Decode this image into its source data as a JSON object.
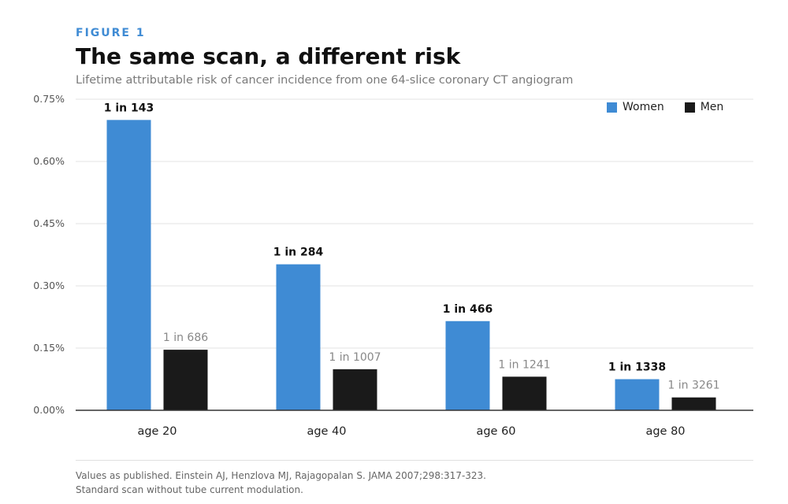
{
  "header": {
    "kicker": "FIGURE 1",
    "title": "The same scan, a different risk",
    "subtitle": "Lifetime attributable risk of cancer incidence from one 64-slice coronary CT angiogram"
  },
  "legend": [
    {
      "label": "Women",
      "color": "#3f8bd4"
    },
    {
      "label": "Men",
      "color": "#1a1a1a"
    }
  ],
  "footer": {
    "line1": "Values as published. Einstein AJ, Henzlova MJ, Rajagopalan S. JAMA 2007;298:317-323.",
    "line2": "Standard scan without tube current modulation."
  },
  "chart_data": {
    "type": "bar",
    "title": "The same scan, a different risk",
    "subtitle": "Lifetime attributable risk of cancer incidence from one 64-slice coronary CT angiogram",
    "categories": [
      "age 20",
      "age 40",
      "age 60",
      "age 80"
    ],
    "series": [
      {
        "name": "Women",
        "color": "#3f8bd4",
        "values": [
          0.7,
          0.352,
          0.215,
          0.075
        ],
        "labels": [
          "1 in 143",
          "1 in 284",
          "1 in 466",
          "1 in 1338"
        ]
      },
      {
        "name": "Men",
        "color": "#1a1a1a",
        "values": [
          0.146,
          0.099,
          0.081,
          0.031
        ],
        "labels": [
          "1 in 686",
          "1 in 1007",
          "1 in 1241",
          "1 in 3261"
        ]
      }
    ],
    "yticks": [
      "0.00%",
      "0.15%",
      "0.30%",
      "0.45%",
      "0.60%",
      "0.75%"
    ],
    "ylim": [
      0,
      0.75
    ],
    "grid": true,
    "legend_position": "top-right"
  }
}
